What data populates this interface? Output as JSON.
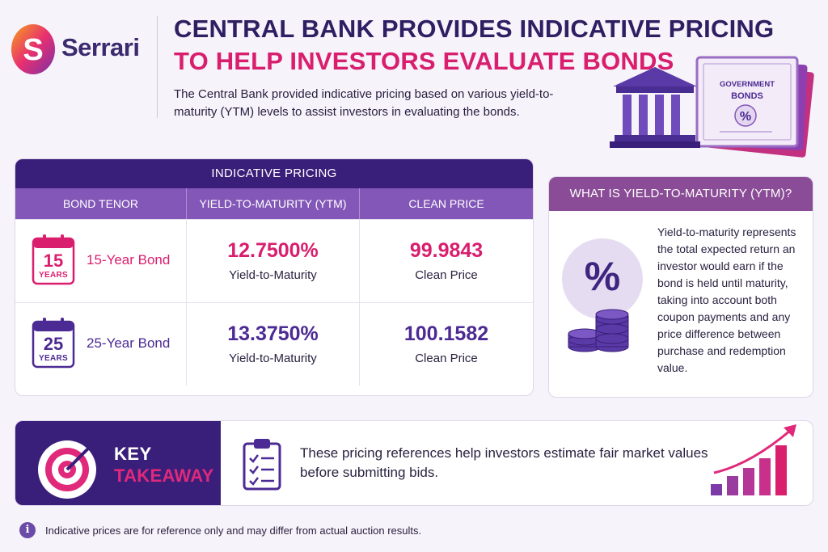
{
  "brand": {
    "name": "Serrari",
    "logo_letter": "S"
  },
  "header": {
    "title_line1": "Central Bank Provides Indicative Pricing",
    "title_line2": "To Help Investors Evaluate Bonds",
    "intro": "The Central Bank provided indicative pricing based on various yield-to-maturity (YTM) levels to assist investors in evaluating the bonds."
  },
  "hero": {
    "certificate_line1": "GOVERNMENT",
    "certificate_line2": "BONDS",
    "certificate_symbol": "%"
  },
  "pricing_table": {
    "title": "INDICATIVE PRICING",
    "columns": [
      "BOND TENOR",
      "YIELD-TO-MATURITY (YTM)",
      "CLEAN PRICE"
    ],
    "rows": [
      {
        "calendar_number": "15",
        "calendar_unit": "YEARS",
        "bond": "15-Year Bond",
        "ytm": "12.7500%",
        "ytm_label": "Yield-to-Maturity",
        "price": "99.9843",
        "price_label": "Clean Price"
      },
      {
        "calendar_number": "25",
        "calendar_unit": "YEARS",
        "bond": "25-Year Bond",
        "ytm": "13.3750%",
        "ytm_label": "Yield-to-Maturity",
        "price": "100.1582",
        "price_label": "Clean Price"
      }
    ]
  },
  "ytm_box": {
    "title": "WHAT IS YIELD-TO-MATURITY (YTM)?",
    "symbol": "%",
    "text": "Yield-to-maturity represents the total expected return an investor would earn if the bond is held until maturity, taking into account both coupon payments and any price difference between purchase and redemption value."
  },
  "takeaway": {
    "label_line1": "KEY",
    "label_line2": "TAKEAWAY",
    "text": "These pricing references help investors estimate fair market values before submitting bids."
  },
  "footer": {
    "info_symbol": "i",
    "note": "Indicative prices are for reference only and may differ from actual auction results."
  },
  "colors": {
    "navy": "#2e1f63",
    "pink": "#d91e6e",
    "table_header": "#3a1f7a",
    "table_subheader": "#8357b8",
    "ytm_header": "#8a4c96"
  }
}
